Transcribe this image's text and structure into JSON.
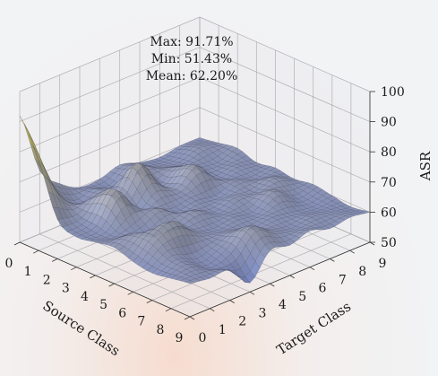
{
  "chart_data": {
    "type": "surface3d",
    "title": "",
    "annotations": [
      "Max: 91.71%",
      "Min: 51.43%",
      "Mean: 62.20%"
    ],
    "xlabel": "Source Class",
    "ylabel": "Target Class",
    "zlabel": "ASR",
    "x_ticks": [
      "0",
      "1",
      "2",
      "3",
      "4",
      "5",
      "6",
      "7",
      "8",
      "9"
    ],
    "y_ticks": [
      "0",
      "1",
      "2",
      "3",
      "4",
      "5",
      "6",
      "7",
      "8",
      "9"
    ],
    "z_ticks": [
      "50",
      "60",
      "70",
      "80",
      "90",
      "100"
    ],
    "xlim": [
      0,
      9
    ],
    "ylim": [
      0,
      9
    ],
    "zlim": [
      50,
      100
    ],
    "stats": {
      "max": 91.71,
      "min": 51.43,
      "mean": 62.2
    },
    "grid": true,
    "colormap": [
      "#6a7cc0",
      "#9a9a9a",
      "#f2e24a"
    ],
    "z_values_approx": [
      [
        92,
        71,
        64,
        60,
        60,
        62,
        60,
        59,
        60,
        60
      ],
      [
        80,
        66,
        60,
        62,
        60,
        64,
        61,
        60,
        62,
        61
      ],
      [
        63,
        62,
        66,
        63,
        71,
        61,
        64,
        61,
        60,
        62
      ],
      [
        60,
        61,
        70,
        60,
        64,
        62,
        67,
        60,
        61,
        60
      ],
      [
        61,
        60,
        62,
        64,
        60,
        61,
        60,
        62,
        60,
        61
      ],
      [
        62,
        64,
        60,
        61,
        63,
        60,
        62,
        61,
        63,
        60
      ],
      [
        60,
        66,
        68,
        62,
        60,
        61,
        60,
        64,
        60,
        61
      ],
      [
        59,
        62,
        60,
        61,
        62,
        60,
        61,
        60,
        59,
        60
      ],
      [
        60,
        61,
        58,
        60,
        66,
        62,
        60,
        61,
        60,
        59
      ],
      [
        61,
        60,
        60,
        53,
        61,
        60,
        62,
        60,
        61,
        60
      ]
    ]
  }
}
